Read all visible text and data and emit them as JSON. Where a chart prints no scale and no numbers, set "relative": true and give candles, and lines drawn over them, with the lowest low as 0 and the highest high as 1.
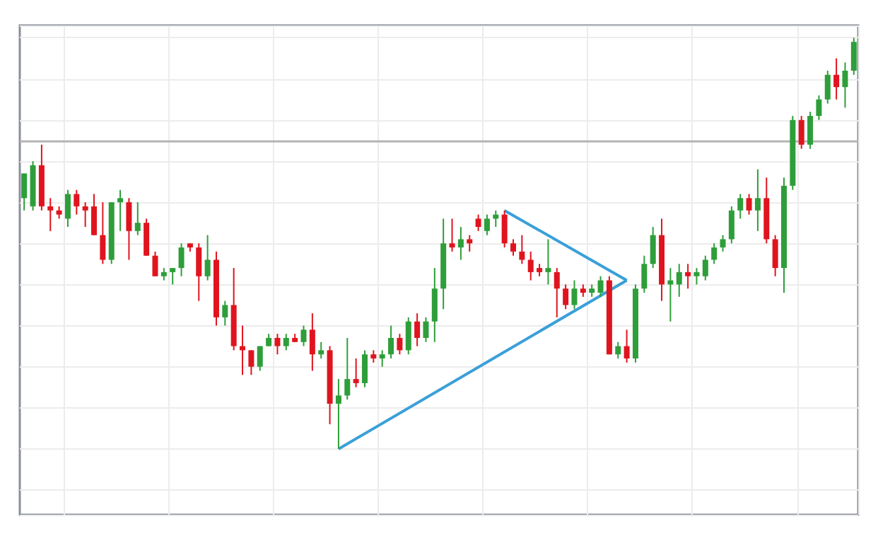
{
  "chart_data": {
    "type": "candlestick",
    "relative": true,
    "grid": true,
    "categories": [
      null,
      null,
      null,
      null,
      null,
      null,
      null,
      null,
      null,
      null,
      null,
      null,
      null,
      null,
      null,
      null,
      null,
      null,
      null,
      null,
      null,
      null,
      null,
      null,
      null,
      null,
      null,
      null,
      null,
      null,
      null,
      null,
      null,
      null,
      null,
      null,
      null,
      null,
      null,
      null,
      null,
      null,
      null,
      null,
      null,
      null,
      null,
      null,
      null,
      null,
      null,
      null,
      null,
      null,
      null,
      null,
      null,
      null,
      null,
      null,
      null,
      null,
      null,
      null,
      null,
      null,
      null,
      null,
      null,
      null,
      null,
      null,
      null,
      null,
      null,
      null,
      null,
      null,
      null,
      null,
      null,
      null,
      null,
      null,
      null,
      null,
      null,
      null,
      null,
      null,
      null,
      null,
      null,
      null,
      null,
      null
    ],
    "ohlc": [
      [
        0.61,
        0.67,
        0.58,
        0.67
      ],
      [
        0.59,
        0.7,
        0.58,
        0.69
      ],
      [
        0.69,
        0.74,
        0.58,
        0.59
      ],
      [
        0.59,
        0.61,
        0.53,
        0.58
      ],
      [
        0.58,
        0.59,
        0.56,
        0.57
      ],
      [
        0.56,
        0.63,
        0.54,
        0.62
      ],
      [
        0.62,
        0.63,
        0.57,
        0.59
      ],
      [
        0.59,
        0.6,
        0.54,
        0.58
      ],
      [
        0.59,
        0.62,
        0.52,
        0.52
      ],
      [
        0.52,
        0.6,
        0.45,
        0.46
      ],
      [
        0.46,
        0.6,
        0.45,
        0.6
      ],
      [
        0.6,
        0.63,
        0.53,
        0.61
      ],
      [
        0.6,
        0.61,
        0.46,
        0.53
      ],
      [
        0.53,
        0.6,
        0.52,
        0.55
      ],
      [
        0.55,
        0.56,
        0.47,
        0.47
      ],
      [
        0.47,
        0.48,
        0.42,
        0.42
      ],
      [
        0.42,
        0.44,
        0.41,
        0.43
      ],
      [
        0.43,
        0.44,
        0.4,
        0.44
      ],
      [
        0.44,
        0.5,
        0.42,
        0.49
      ],
      [
        0.5,
        0.5,
        0.48,
        0.49
      ],
      [
        0.49,
        0.5,
        0.36,
        0.42
      ],
      [
        0.42,
        0.52,
        0.41,
        0.46
      ],
      [
        0.46,
        0.48,
        0.3,
        0.32
      ],
      [
        0.32,
        0.36,
        0.3,
        0.35
      ],
      [
        0.35,
        0.44,
        0.24,
        0.25
      ],
      [
        0.25,
        0.3,
        0.18,
        0.24
      ],
      [
        0.24,
        0.24,
        0.18,
        0.2
      ],
      [
        0.2,
        0.25,
        0.19,
        0.25
      ],
      [
        0.25,
        0.28,
        0.25,
        0.27
      ],
      [
        0.27,
        0.28,
        0.23,
        0.25
      ],
      [
        0.25,
        0.28,
        0.24,
        0.27
      ],
      [
        0.27,
        0.28,
        0.26,
        0.26
      ],
      [
        0.26,
        0.3,
        0.25,
        0.29
      ],
      [
        0.29,
        0.33,
        0.19,
        0.23
      ],
      [
        0.23,
        0.26,
        0.22,
        0.24
      ],
      [
        0.24,
        0.25,
        0.06,
        0.11
      ],
      [
        0.11,
        0.17,
        0,
        0.13
      ],
      [
        0.13,
        0.27,
        0.12,
        0.17
      ],
      [
        0.17,
        0.22,
        0.15,
        0.16
      ],
      [
        0.16,
        0.24,
        0.15,
        0.23
      ],
      [
        0.23,
        0.24,
        0.21,
        0.22
      ],
      [
        0.22,
        0.24,
        0.2,
        0.23
      ],
      [
        0.23,
        0.3,
        0.22,
        0.27
      ],
      [
        0.27,
        0.28,
        0.23,
        0.24
      ],
      [
        0.24,
        0.32,
        0.23,
        0.31
      ],
      [
        0.31,
        0.33,
        0.25,
        0.27
      ],
      [
        0.27,
        0.32,
        0.26,
        0.31
      ],
      [
        0.31,
        0.44,
        0.26,
        0.39
      ],
      [
        0.39,
        0.56,
        0.34,
        0.5
      ],
      [
        0.5,
        0.56,
        0.48,
        0.49
      ],
      [
        0.49,
        0.54,
        0.46,
        0.51
      ],
      [
        0.51,
        0.52,
        0.48,
        0.5
      ],
      [
        0.56,
        0.57,
        0.53,
        0.54
      ],
      [
        0.53,
        0.57,
        0.52,
        0.56
      ],
      [
        0.56,
        0.58,
        0.54,
        0.57
      ],
      [
        0.57,
        0.58,
        0.49,
        0.5
      ],
      [
        0.5,
        0.51,
        0.47,
        0.48
      ],
      [
        0.48,
        0.52,
        0.45,
        0.46
      ],
      [
        0.46,
        0.48,
        0.41,
        0.43
      ],
      [
        0.44,
        0.45,
        0.42,
        0.43
      ],
      [
        0.43,
        0.51,
        0.4,
        0.44
      ],
      [
        0.43,
        0.44,
        0.32,
        0.39
      ],
      [
        0.39,
        0.4,
        0.34,
        0.35
      ],
      [
        0.35,
        0.41,
        0.34,
        0.39
      ],
      [
        0.39,
        0.4,
        0.37,
        0.38
      ],
      [
        0.38,
        0.4,
        0.37,
        0.39
      ],
      [
        0.38,
        0.42,
        0.37,
        0.41
      ],
      [
        0.41,
        0.42,
        0.23,
        0.23
      ],
      [
        0.23,
        0.26,
        0.22,
        0.25
      ],
      [
        0.25,
        0.29,
        0.21,
        0.22
      ],
      [
        0.22,
        0.4,
        0.21,
        0.39
      ],
      [
        0.39,
        0.47,
        0.38,
        0.45
      ],
      [
        0.45,
        0.54,
        0.44,
        0.52
      ],
      [
        0.52,
        0.56,
        0.36,
        0.4
      ],
      [
        0.4,
        0.44,
        0.31,
        0.41
      ],
      [
        0.4,
        0.45,
        0.37,
        0.43
      ],
      [
        0.43,
        0.45,
        0.39,
        0.42
      ],
      [
        0.42,
        0.44,
        0.4,
        0.43
      ],
      [
        0.42,
        0.47,
        0.41,
        0.46
      ],
      [
        0.46,
        0.5,
        0.45,
        0.49
      ],
      [
        0.49,
        0.52,
        0.48,
        0.51
      ],
      [
        0.51,
        0.59,
        0.5,
        0.58
      ],
      [
        0.58,
        0.62,
        0.56,
        0.61
      ],
      [
        0.61,
        0.62,
        0.57,
        0.58
      ],
      [
        0.58,
        0.68,
        0.53,
        0.61
      ],
      [
        0.61,
        0.66,
        0.5,
        0.51
      ],
      [
        0.51,
        0.52,
        0.42,
        0.44
      ],
      [
        0.44,
        0.66,
        0.38,
        0.64
      ],
      [
        0.64,
        0.81,
        0.63,
        0.8
      ],
      [
        0.8,
        0.81,
        0.73,
        0.74
      ],
      [
        0.74,
        0.82,
        0.73,
        0.81
      ],
      [
        0.81,
        0.86,
        0.8,
        0.85
      ],
      [
        0.85,
        0.92,
        0.84,
        0.91
      ],
      [
        0.91,
        0.95,
        0.85,
        0.88
      ],
      [
        0.88,
        0.94,
        0.83,
        0.92
      ],
      [
        0.92,
        1.0,
        0.91,
        0.99
      ]
    ],
    "series": [
      {
        "type": "line",
        "color": "#3a9fd8",
        "values": [
          null,
          null,
          null,
          null,
          null,
          null,
          null,
          null,
          null,
          null,
          null,
          null,
          null,
          null,
          null,
          null,
          null,
          null,
          null,
          null,
          null,
          null,
          null,
          null,
          null,
          null,
          null,
          null,
          null,
          null,
          null,
          null,
          null,
          null,
          null,
          null,
          null,
          null,
          null,
          null,
          null,
          null,
          null,
          null,
          null,
          null,
          null,
          null,
          null,
          null,
          null,
          null,
          null,
          null,
          null,
          0.58,
          null,
          null,
          null,
          null,
          null,
          null,
          null,
          null,
          null,
          null,
          null,
          null,
          null,
          0.41,
          null,
          null,
          null,
          null,
          null,
          null,
          null,
          null,
          null,
          null,
          null,
          null,
          null,
          null,
          null,
          null,
          null,
          null,
          null,
          null,
          null,
          null,
          null,
          null,
          null,
          null
        ]
      },
      {
        "type": "line",
        "color": "#3a9fd8",
        "values": [
          null,
          null,
          null,
          null,
          null,
          null,
          null,
          null,
          null,
          null,
          null,
          null,
          null,
          null,
          null,
          null,
          null,
          null,
          null,
          null,
          null,
          null,
          null,
          null,
          null,
          null,
          null,
          null,
          null,
          null,
          null,
          null,
          null,
          null,
          null,
          null,
          0,
          null,
          null,
          null,
          null,
          null,
          null,
          null,
          null,
          null,
          null,
          null,
          null,
          null,
          null,
          null,
          null,
          null,
          null,
          null,
          null,
          null,
          null,
          null,
          null,
          null,
          null,
          null,
          null,
          null,
          null,
          null,
          null,
          0.41,
          null,
          null,
          null,
          null,
          null,
          null,
          null,
          null,
          null,
          null,
          null,
          null,
          null,
          null,
          null,
          null,
          null,
          null,
          null,
          null,
          null,
          null,
          null,
          null,
          null,
          null
        ]
      }
    ],
    "line_style": "solid",
    "ref_lines": [
      {
        "axis": "y",
        "value": 0.75,
        "color": "#b4b4b4"
      }
    ]
  }
}
